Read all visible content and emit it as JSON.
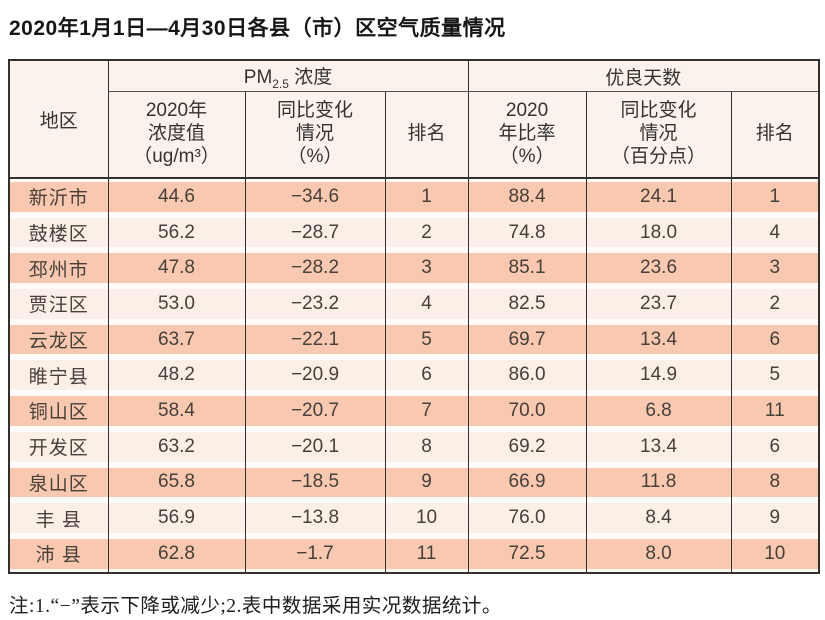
{
  "title": "2020年1月1日—4月30日各县（市）区空气质量情况",
  "table": {
    "region_header": "地区",
    "pm25_group": {
      "prefix": "PM",
      "sub": "2.5",
      "suffix": " 浓度"
    },
    "good_days_group": "优良天数",
    "subheaders": [
      "2020年\n浓度值\n（ug/m³）",
      "同比变化\n情况\n（%）",
      "排名",
      "2020\n年比率\n（%）",
      "同比变化\n情况\n（百分点）",
      "排名"
    ],
    "rows": [
      {
        "region": "新沂市",
        "pm25_value": "44.6",
        "pm25_change": "−34.6",
        "pm25_rank": "1",
        "good_rate": "88.4",
        "good_change": "24.1",
        "good_rank": "1"
      },
      {
        "region": "鼓楼区",
        "pm25_value": "56.2",
        "pm25_change": "−28.7",
        "pm25_rank": "2",
        "good_rate": "74.8",
        "good_change": "18.0",
        "good_rank": "4"
      },
      {
        "region": "邳州市",
        "pm25_value": "47.8",
        "pm25_change": "−28.2",
        "pm25_rank": "3",
        "good_rate": "85.1",
        "good_change": "23.6",
        "good_rank": "3"
      },
      {
        "region": "贾汪区",
        "pm25_value": "53.0",
        "pm25_change": "−23.2",
        "pm25_rank": "4",
        "good_rate": "82.5",
        "good_change": "23.7",
        "good_rank": "2"
      },
      {
        "region": "云龙区",
        "pm25_value": "63.7",
        "pm25_change": "−22.1",
        "pm25_rank": "5",
        "good_rate": "69.7",
        "good_change": "13.4",
        "good_rank": "6"
      },
      {
        "region": "睢宁县",
        "pm25_value": "48.2",
        "pm25_change": "−20.9",
        "pm25_rank": "6",
        "good_rate": "86.0",
        "good_change": "14.9",
        "good_rank": "5"
      },
      {
        "region": "铜山区",
        "pm25_value": "58.4",
        "pm25_change": "−20.7",
        "pm25_rank": "7",
        "good_rate": "70.0",
        "good_change": "6.8",
        "good_rank": "11"
      },
      {
        "region": "开发区",
        "pm25_value": "63.2",
        "pm25_change": "−20.1",
        "pm25_rank": "8",
        "good_rate": "69.2",
        "good_change": "13.4",
        "good_rank": "6"
      },
      {
        "region": "泉山区",
        "pm25_value": "65.8",
        "pm25_change": "−18.5",
        "pm25_rank": "9",
        "good_rate": "66.9",
        "good_change": "11.8",
        "good_rank": "8"
      },
      {
        "region": "丰 县",
        "pm25_value": "56.9",
        "pm25_change": "−13.8",
        "pm25_rank": "10",
        "good_rate": "76.0",
        "good_change": "8.4",
        "good_rank": "9"
      },
      {
        "region": "沛 县",
        "pm25_value": "62.8",
        "pm25_change": "−1.7",
        "pm25_rank": "11",
        "good_rate": "72.5",
        "good_change": "8.0",
        "good_rank": "10"
      }
    ]
  },
  "note": "注:1.“−”表示下降或减少;2.表中数据采用实况数据统计。",
  "colors": {
    "stripe_dark": "#f8c8b0",
    "stripe_light": "#fcefe8",
    "header_bg": "#fbf2ec",
    "border": "#33302d"
  }
}
